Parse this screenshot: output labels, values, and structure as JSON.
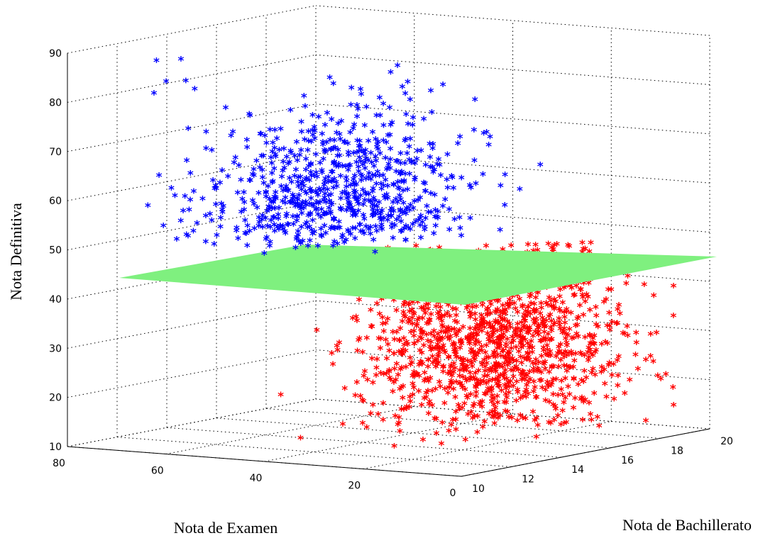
{
  "chart_data": {
    "type": "scatter",
    "view": "3d",
    "xlabel": "Nota de Examen",
    "ylabel": "Nota de Bachillerato",
    "zlabel": "Nota Definitiva",
    "x_ticks": [
      "80",
      "60",
      "40",
      "20",
      "0"
    ],
    "y_ticks": [
      "10",
      "12",
      "14",
      "16",
      "18",
      "20"
    ],
    "z_ticks": [
      "10",
      "20",
      "30",
      "40",
      "50",
      "60",
      "70",
      "80",
      "90"
    ],
    "xlim": [
      0,
      80
    ],
    "ylim": [
      10,
      20
    ],
    "zlim": [
      10,
      90
    ],
    "grid": true,
    "marker": "*",
    "series": [
      {
        "color": "#0000ff",
        "z_range": [
          48,
          90
        ],
        "x_range": [
          20,
          80
        ],
        "y_range": [
          10,
          20
        ]
      },
      {
        "color": "#ff0000",
        "z_range": [
          11,
          48
        ],
        "x_range": [
          0,
          50
        ],
        "y_range": [
          10,
          20
        ]
      }
    ],
    "plane": {
      "z": 48,
      "color": "#7ff07f"
    }
  }
}
